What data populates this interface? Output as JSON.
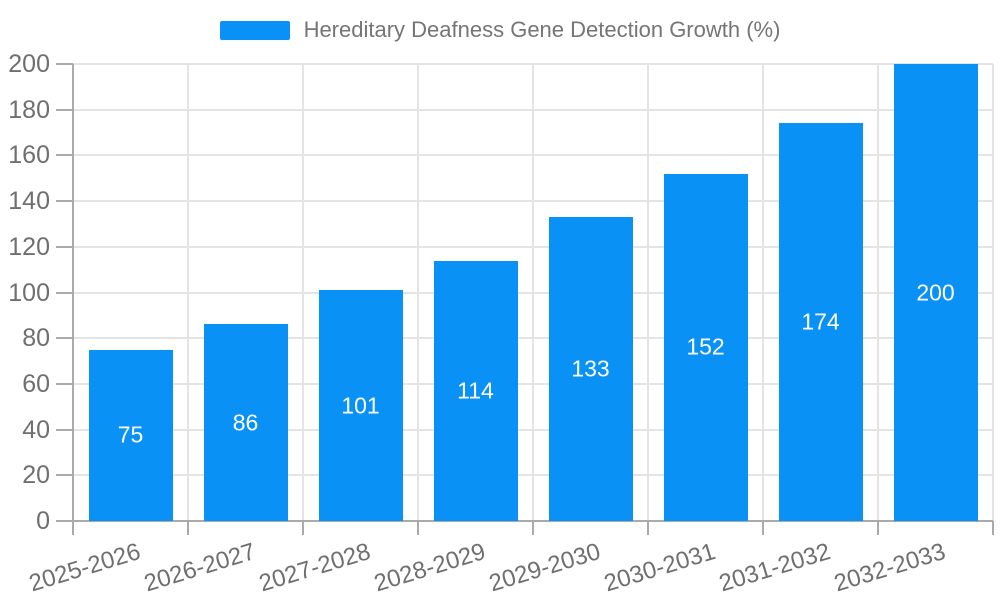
{
  "legend": {
    "label": "Hereditary Deafness Gene Detection Growth (%)",
    "swatch_color": "#0a91f5"
  },
  "chart_data": {
    "type": "bar",
    "title": "Hereditary Deafness Gene Detection Growth (%)",
    "categories": [
      "2025-2026",
      "2026-2027",
      "2027-2028",
      "2028-2029",
      "2029-2030",
      "2030-2031",
      "2031-2032",
      "2032-2033"
    ],
    "values": [
      75,
      86,
      101,
      114,
      133,
      152,
      174,
      200
    ],
    "xlabel": "",
    "ylabel": "",
    "ylim": [
      0,
      200
    ],
    "ytick_step": 20,
    "yticks": [
      0,
      20,
      40,
      60,
      80,
      100,
      120,
      140,
      160,
      180,
      200
    ],
    "grid": true,
    "legend_position": "top-center",
    "x_label_rotation_deg": -17,
    "colors": {
      "bar": "#0a91f5",
      "value_label": "#ffffff",
      "grid": "#e4e4e4",
      "axis": "#aaaaaa",
      "tick_label": "#6f6f6f",
      "title_text": "#757575"
    }
  }
}
